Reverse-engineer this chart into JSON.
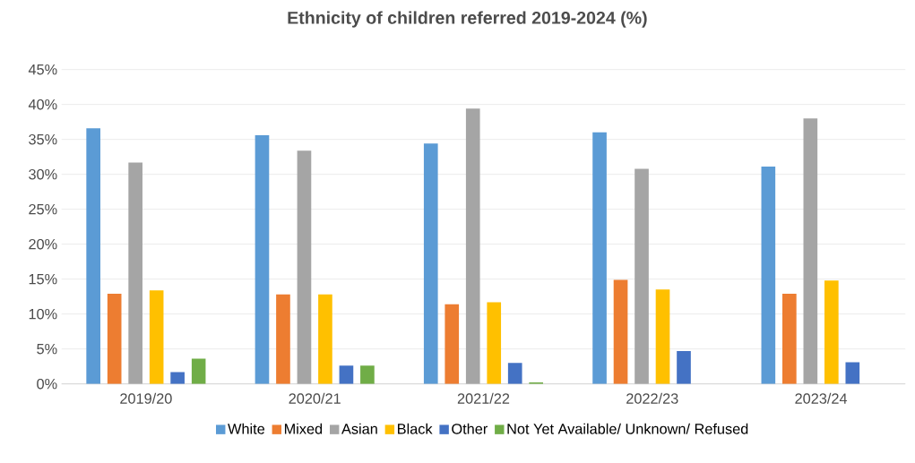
{
  "chart_data": {
    "type": "bar",
    "title": "Ethnicity of children referred 2019-2024 (%)",
    "categories": [
      "2019/20",
      "2020/21",
      "2021/22",
      "2022/23",
      "2023/24"
    ],
    "series": [
      {
        "name": "White",
        "color": "#5b9bd5",
        "values": [
          36.6,
          35.6,
          34.4,
          36.0,
          31.1
        ]
      },
      {
        "name": "Mixed",
        "color": "#ed7d31",
        "values": [
          12.9,
          12.8,
          11.4,
          14.9,
          12.9
        ]
      },
      {
        "name": "Asian",
        "color": "#a5a5a5",
        "values": [
          31.7,
          33.4,
          39.4,
          30.8,
          38.0
        ]
      },
      {
        "name": "Black",
        "color": "#ffc000",
        "values": [
          13.4,
          12.8,
          11.7,
          13.5,
          14.8
        ]
      },
      {
        "name": "Other",
        "color": "#4472c4",
        "values": [
          1.7,
          2.6,
          3.0,
          4.7,
          3.1
        ]
      },
      {
        "name": "Not Yet Available/ Unknown/ Refused",
        "color": "#70ad47",
        "values": [
          3.6,
          2.6,
          0.2,
          null,
          null
        ]
      }
    ],
    "ylim": [
      0,
      45
    ],
    "yticks": [
      {
        "value": 0,
        "label": "0%"
      },
      {
        "value": 5,
        "label": "5%"
      },
      {
        "value": 10,
        "label": "10%"
      },
      {
        "value": 15,
        "label": "15%"
      },
      {
        "value": 20,
        "label": "20%"
      },
      {
        "value": 25,
        "label": "25%"
      },
      {
        "value": 30,
        "label": "30%"
      },
      {
        "value": 35,
        "label": "35%"
      },
      {
        "value": 40,
        "label": "40%"
      },
      {
        "value": 45,
        "label": "45%"
      }
    ],
    "grid": "y",
    "legend": "bottom"
  }
}
